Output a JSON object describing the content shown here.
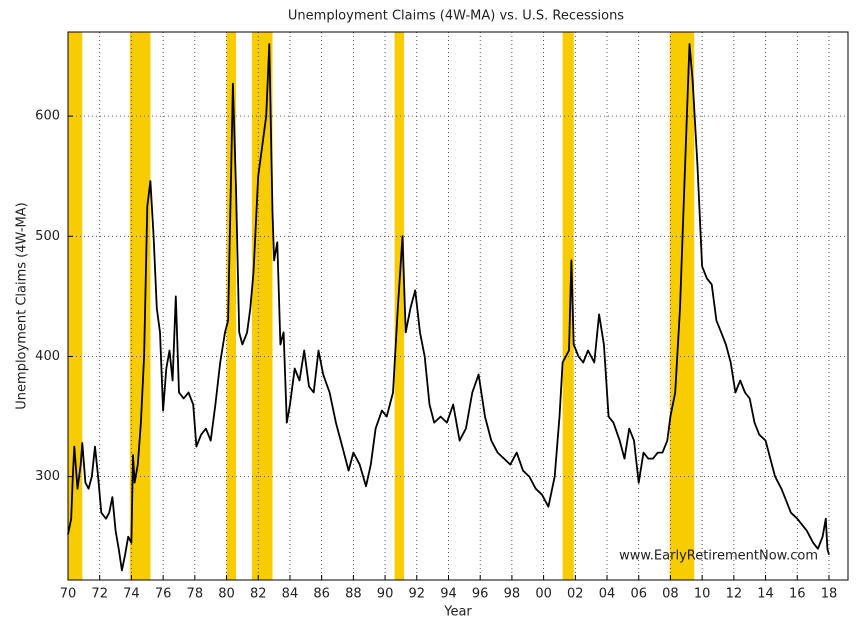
{
  "chart_data": {
    "type": "line",
    "title": "Unemployment Claims (4W-MA) vs. U.S. Recessions",
    "x_label": "Year",
    "y_label": "Unemployment Claims (4W-MA)",
    "watermark": "www.EarlyRetirementNow.com",
    "xlim": [
      1970,
      2019.2
    ],
    "ylim": [
      214,
      670
    ],
    "xticks": [
      {
        "value": 1970,
        "label": "70"
      },
      {
        "value": 1972,
        "label": "72"
      },
      {
        "value": 1974,
        "label": "74"
      },
      {
        "value": 1976,
        "label": "76"
      },
      {
        "value": 1978,
        "label": "78"
      },
      {
        "value": 1980,
        "label": "80"
      },
      {
        "value": 1982,
        "label": "82"
      },
      {
        "value": 1984,
        "label": "84"
      },
      {
        "value": 1986,
        "label": "86"
      },
      {
        "value": 1988,
        "label": "88"
      },
      {
        "value": 1990,
        "label": "90"
      },
      {
        "value": 1992,
        "label": "92"
      },
      {
        "value": 1994,
        "label": "94"
      },
      {
        "value": 1996,
        "label": "96"
      },
      {
        "value": 1998,
        "label": "98"
      },
      {
        "value": 2000,
        "label": "00"
      },
      {
        "value": 2002,
        "label": "02"
      },
      {
        "value": 2004,
        "label": "04"
      },
      {
        "value": 2006,
        "label": "06"
      },
      {
        "value": 2008,
        "label": "08"
      },
      {
        "value": 2010,
        "label": "10"
      },
      {
        "value": 2012,
        "label": "12"
      },
      {
        "value": 2014,
        "label": "14"
      },
      {
        "value": 2016,
        "label": "16"
      },
      {
        "value": 2018,
        "label": "18"
      }
    ],
    "yticks": [
      300,
      400,
      500,
      600
    ],
    "grid": true,
    "recession_color": "#f7cc00",
    "recessions": [
      [
        1970,
        1970.9
      ],
      [
        1973.9,
        1975.2
      ],
      [
        1980.0,
        1980.6
      ],
      [
        1981.6,
        1982.9
      ],
      [
        1990.6,
        1991.2
      ],
      [
        2001.2,
        2001.9
      ],
      [
        2007.95,
        2009.5
      ]
    ],
    "line_color": "#000000",
    "x": [
      1970.0,
      1970.2,
      1970.3,
      1970.4,
      1970.6,
      1970.8,
      1970.9,
      1971.1,
      1971.3,
      1971.5,
      1971.7,
      1971.9,
      1972.1,
      1972.4,
      1972.6,
      1972.8,
      1973.0,
      1973.2,
      1973.4,
      1973.6,
      1973.8,
      1974.0,
      1974.1,
      1974.2,
      1974.4,
      1974.6,
      1974.8,
      1975.0,
      1975.2,
      1975.4,
      1975.6,
      1975.8,
      1976.0,
      1976.2,
      1976.4,
      1976.6,
      1976.8,
      1977.0,
      1977.3,
      1977.6,
      1977.9,
      1978.1,
      1978.4,
      1978.7,
      1979.0,
      1979.3,
      1979.6,
      1979.9,
      1980.1,
      1980.3,
      1980.4,
      1980.6,
      1980.8,
      1981.0,
      1981.3,
      1981.5,
      1981.7,
      1982.0,
      1982.3,
      1982.5,
      1982.7,
      1982.9,
      1983.0,
      1983.2,
      1983.4,
      1983.6,
      1983.8,
      1984.0,
      1984.3,
      1984.6,
      1984.9,
      1985.2,
      1985.5,
      1985.8,
      1986.1,
      1986.5,
      1986.9,
      1987.3,
      1987.7,
      1988.0,
      1988.4,
      1988.8,
      1989.1,
      1989.4,
      1989.8,
      1990.1,
      1990.5,
      1990.8,
      1991.1,
      1991.3,
      1991.6,
      1991.9,
      1992.2,
      1992.5,
      1992.8,
      1993.1,
      1993.5,
      1993.9,
      1994.3,
      1994.7,
      1995.1,
      1995.5,
      1995.9,
      1996.3,
      1996.7,
      1997.1,
      1997.5,
      1997.9,
      1998.3,
      1998.7,
      1999.1,
      1999.5,
      1999.9,
      2000.3,
      2000.7,
      2001.0,
      2001.2,
      2001.6,
      2001.75,
      2001.9,
      2002.2,
      2002.5,
      2002.8,
      2003.2,
      2003.5,
      2003.8,
      2004.1,
      2004.4,
      2004.8,
      2005.1,
      2005.4,
      2005.7,
      2006.0,
      2006.3,
      2006.6,
      2006.9,
      2007.2,
      2007.5,
      2007.8,
      2008.0,
      2008.3,
      2008.6,
      2008.9,
      2009.2,
      2009.4,
      2009.7,
      2010.0,
      2010.3,
      2010.6,
      2010.9,
      2011.2,
      2011.5,
      2011.8,
      2012.1,
      2012.4,
      2012.7,
      2013.0,
      2013.3,
      2013.6,
      2014.0,
      2014.3,
      2014.6,
      2015.0,
      2015.3,
      2015.6,
      2016.0,
      2016.3,
      2016.6,
      2017.0,
      2017.3,
      2017.6,
      2017.8,
      2017.9,
      2018.0
    ],
    "values": [
      252,
      265,
      300,
      325,
      290,
      310,
      328,
      295,
      290,
      300,
      325,
      300,
      270,
      265,
      270,
      283,
      255,
      240,
      222,
      235,
      250,
      245,
      318,
      295,
      310,
      345,
      400,
      525,
      546,
      500,
      440,
      420,
      355,
      390,
      405,
      380,
      450,
      370,
      365,
      370,
      360,
      325,
      335,
      340,
      330,
      360,
      395,
      420,
      430,
      560,
      627,
      540,
      420,
      410,
      420,
      440,
      470,
      550,
      580,
      600,
      660,
      520,
      480,
      495,
      410,
      420,
      345,
      360,
      390,
      380,
      405,
      375,
      370,
      405,
      385,
      370,
      345,
      325,
      305,
      320,
      310,
      292,
      310,
      340,
      355,
      350,
      370,
      440,
      500,
      420,
      440,
      455,
      420,
      400,
      360,
      345,
      350,
      345,
      360,
      330,
      340,
      370,
      385,
      350,
      330,
      320,
      315,
      310,
      320,
      305,
      300,
      290,
      285,
      275,
      300,
      350,
      395,
      405,
      480,
      410,
      400,
      395,
      405,
      395,
      435,
      410,
      350,
      345,
      330,
      315,
      340,
      330,
      295,
      320,
      315,
      315,
      320,
      320,
      330,
      350,
      370,
      440,
      550,
      660,
      630,
      560,
      475,
      465,
      460,
      430,
      420,
      410,
      395,
      370,
      380,
      370,
      365,
      345,
      335,
      330,
      315,
      300,
      290,
      280,
      270,
      265,
      260,
      255,
      245,
      240,
      250,
      265,
      240,
      235
    ]
  }
}
